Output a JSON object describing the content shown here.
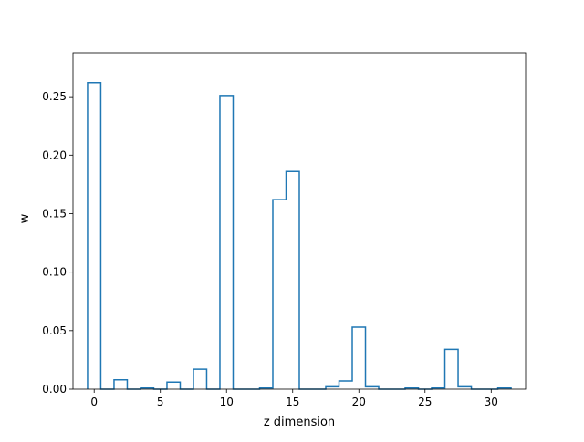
{
  "chart_data": {
    "type": "bar",
    "style": "step-histogram",
    "xlabel": "z dimension",
    "ylabel": "w",
    "xlim": [
      -1.6,
      32.6
    ],
    "ylim": [
      0,
      0.2875
    ],
    "xticks": [
      0,
      5,
      10,
      15,
      20,
      25,
      30
    ],
    "xtick_labels": [
      "0",
      "5",
      "10",
      "15",
      "20",
      "25",
      "30"
    ],
    "yticks": [
      0.0,
      0.05,
      0.1,
      0.15,
      0.2,
      0.25
    ],
    "ytick_labels": [
      "0.00",
      "0.05",
      "0.10",
      "0.15",
      "0.20",
      "0.25"
    ],
    "grid": false,
    "color": "#1f77b4",
    "x": [
      0,
      1,
      2,
      3,
      4,
      5,
      6,
      7,
      8,
      9,
      10,
      11,
      12,
      13,
      14,
      15,
      16,
      17,
      18,
      19,
      20,
      21,
      22,
      23,
      24,
      25,
      26,
      27,
      28,
      29,
      30,
      31
    ],
    "values": [
      0.262,
      0.0,
      0.008,
      0.0,
      0.001,
      0.0,
      0.006,
      0.0,
      0.017,
      0.0,
      0.251,
      0.0,
      0.0,
      0.001,
      0.162,
      0.186,
      0.0,
      0.0,
      0.002,
      0.007,
      0.053,
      0.002,
      0.0,
      0.0,
      0.001,
      0.0,
      0.001,
      0.034,
      0.002,
      0.0,
      0.0,
      0.001
    ]
  }
}
